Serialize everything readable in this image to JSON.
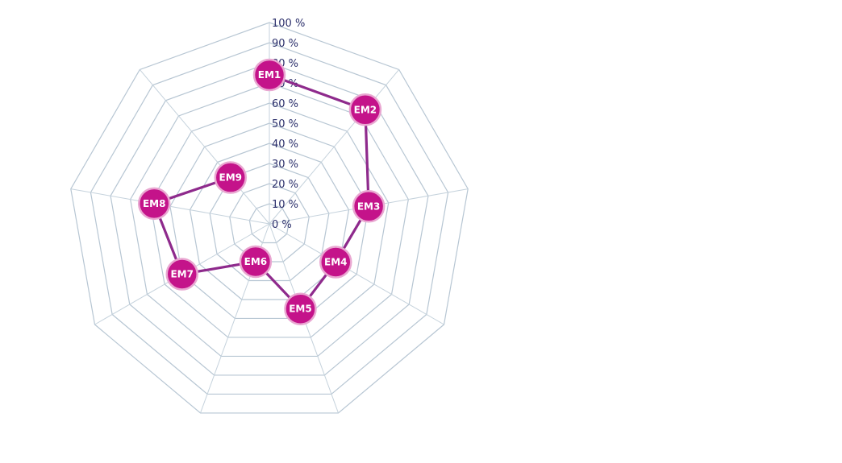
{
  "chart_data": {
    "type": "radar",
    "categories": [
      "EM1",
      "EM2",
      "EM3",
      "EM4",
      "EM5",
      "EM6",
      "EM7",
      "EM8",
      "EM9"
    ],
    "series": [
      {
        "values": [
          74,
          74,
          50,
          38,
          45,
          20,
          50,
          58,
          30
        ]
      }
    ],
    "ylim": [
      0,
      100
    ],
    "tick_labels": [
      "0 %",
      "10 %",
      "20 %",
      "30 %",
      "40 %",
      "50 %",
      "60 %",
      "70 %",
      "80 %",
      "90 %",
      "100 %"
    ],
    "grid": true,
    "colors": {
      "series": "#8e2a8c",
      "marker": "#c4138a",
      "grid": "#b7c6d3",
      "tick_text": "#2b2f6b"
    }
  }
}
